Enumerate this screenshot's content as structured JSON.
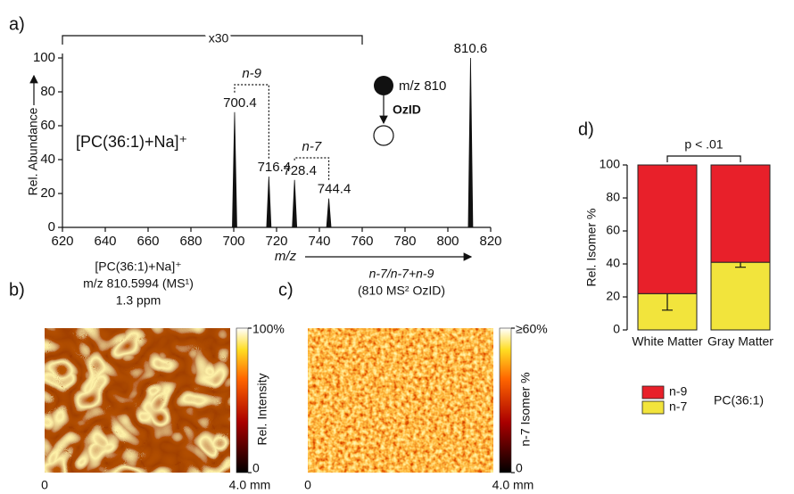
{
  "chart_data": [
    {
      "type": "spectrum",
      "panel": "a)",
      "x": [
        700.4,
        716.4,
        728.4,
        744.4,
        810.6
      ],
      "values": [
        68,
        30,
        28,
        17,
        100
      ],
      "color": "#111111",
      "xlim": [
        620,
        820
      ],
      "xticks": [
        620,
        640,
        660,
        680,
        700,
        720,
        740,
        760,
        780,
        800,
        820
      ],
      "ylim": [
        0,
        100
      ],
      "yticks": [
        0,
        20,
        40,
        60,
        80,
        100
      ],
      "xlabel": "m/z",
      "ylabel": "Rel. Abundance",
      "annotations": {
        "scale": "x30",
        "n9": "n-9",
        "n7": "n-7",
        "ion": "[PC(36:1)+Na]⁺",
        "precursor": "m/z 810",
        "method": "OzID"
      }
    },
    {
      "type": "heatmap",
      "panel": "b)",
      "title_lines": [
        "[PC(36:1)+Na]⁺",
        "m/z 810.5994 (MS¹)",
        "1.3 ppm"
      ],
      "colorbar_label": "Rel. Intensity",
      "clim": [
        0,
        100
      ],
      "cticks": [
        {
          "value": 100,
          "label": "100%"
        },
        0
      ],
      "xlim": [
        0,
        4
      ],
      "xticks": [
        0,
        {
          "value": 4,
          "label": "4.0 mm"
        }
      ]
    },
    {
      "type": "heatmap",
      "panel": "c)",
      "title_lines": [
        "n-7/n-7+n-9",
        "(810 MS² OzID)"
      ],
      "colorbar_label": "n-7 Isomer %",
      "clim": [
        0,
        60
      ],
      "cticks": [
        {
          "value": 60,
          "label": "≥60%"
        },
        0
      ],
      "xlim": [
        0,
        4
      ],
      "xticks": [
        0,
        {
          "value": 4,
          "label": "4.0 mm"
        }
      ]
    },
    {
      "type": "bar",
      "stacked": true,
      "panel": "d)",
      "categories": [
        "White Matter",
        "Gray Matter"
      ],
      "series": [
        {
          "name": "n-7",
          "color": "#f2e43c",
          "values": [
            22,
            41
          ],
          "errors": [
            10,
            3
          ]
        },
        {
          "name": "n-9",
          "color": "#e8202a",
          "values": [
            78,
            59
          ]
        }
      ],
      "ylim": [
        0,
        100
      ],
      "yticks": [
        0,
        20,
        40,
        60,
        80,
        100
      ],
      "ylabel": "Rel. Isomer %",
      "annotation": "p < .01",
      "legend_title": "PC(36:1)"
    }
  ]
}
